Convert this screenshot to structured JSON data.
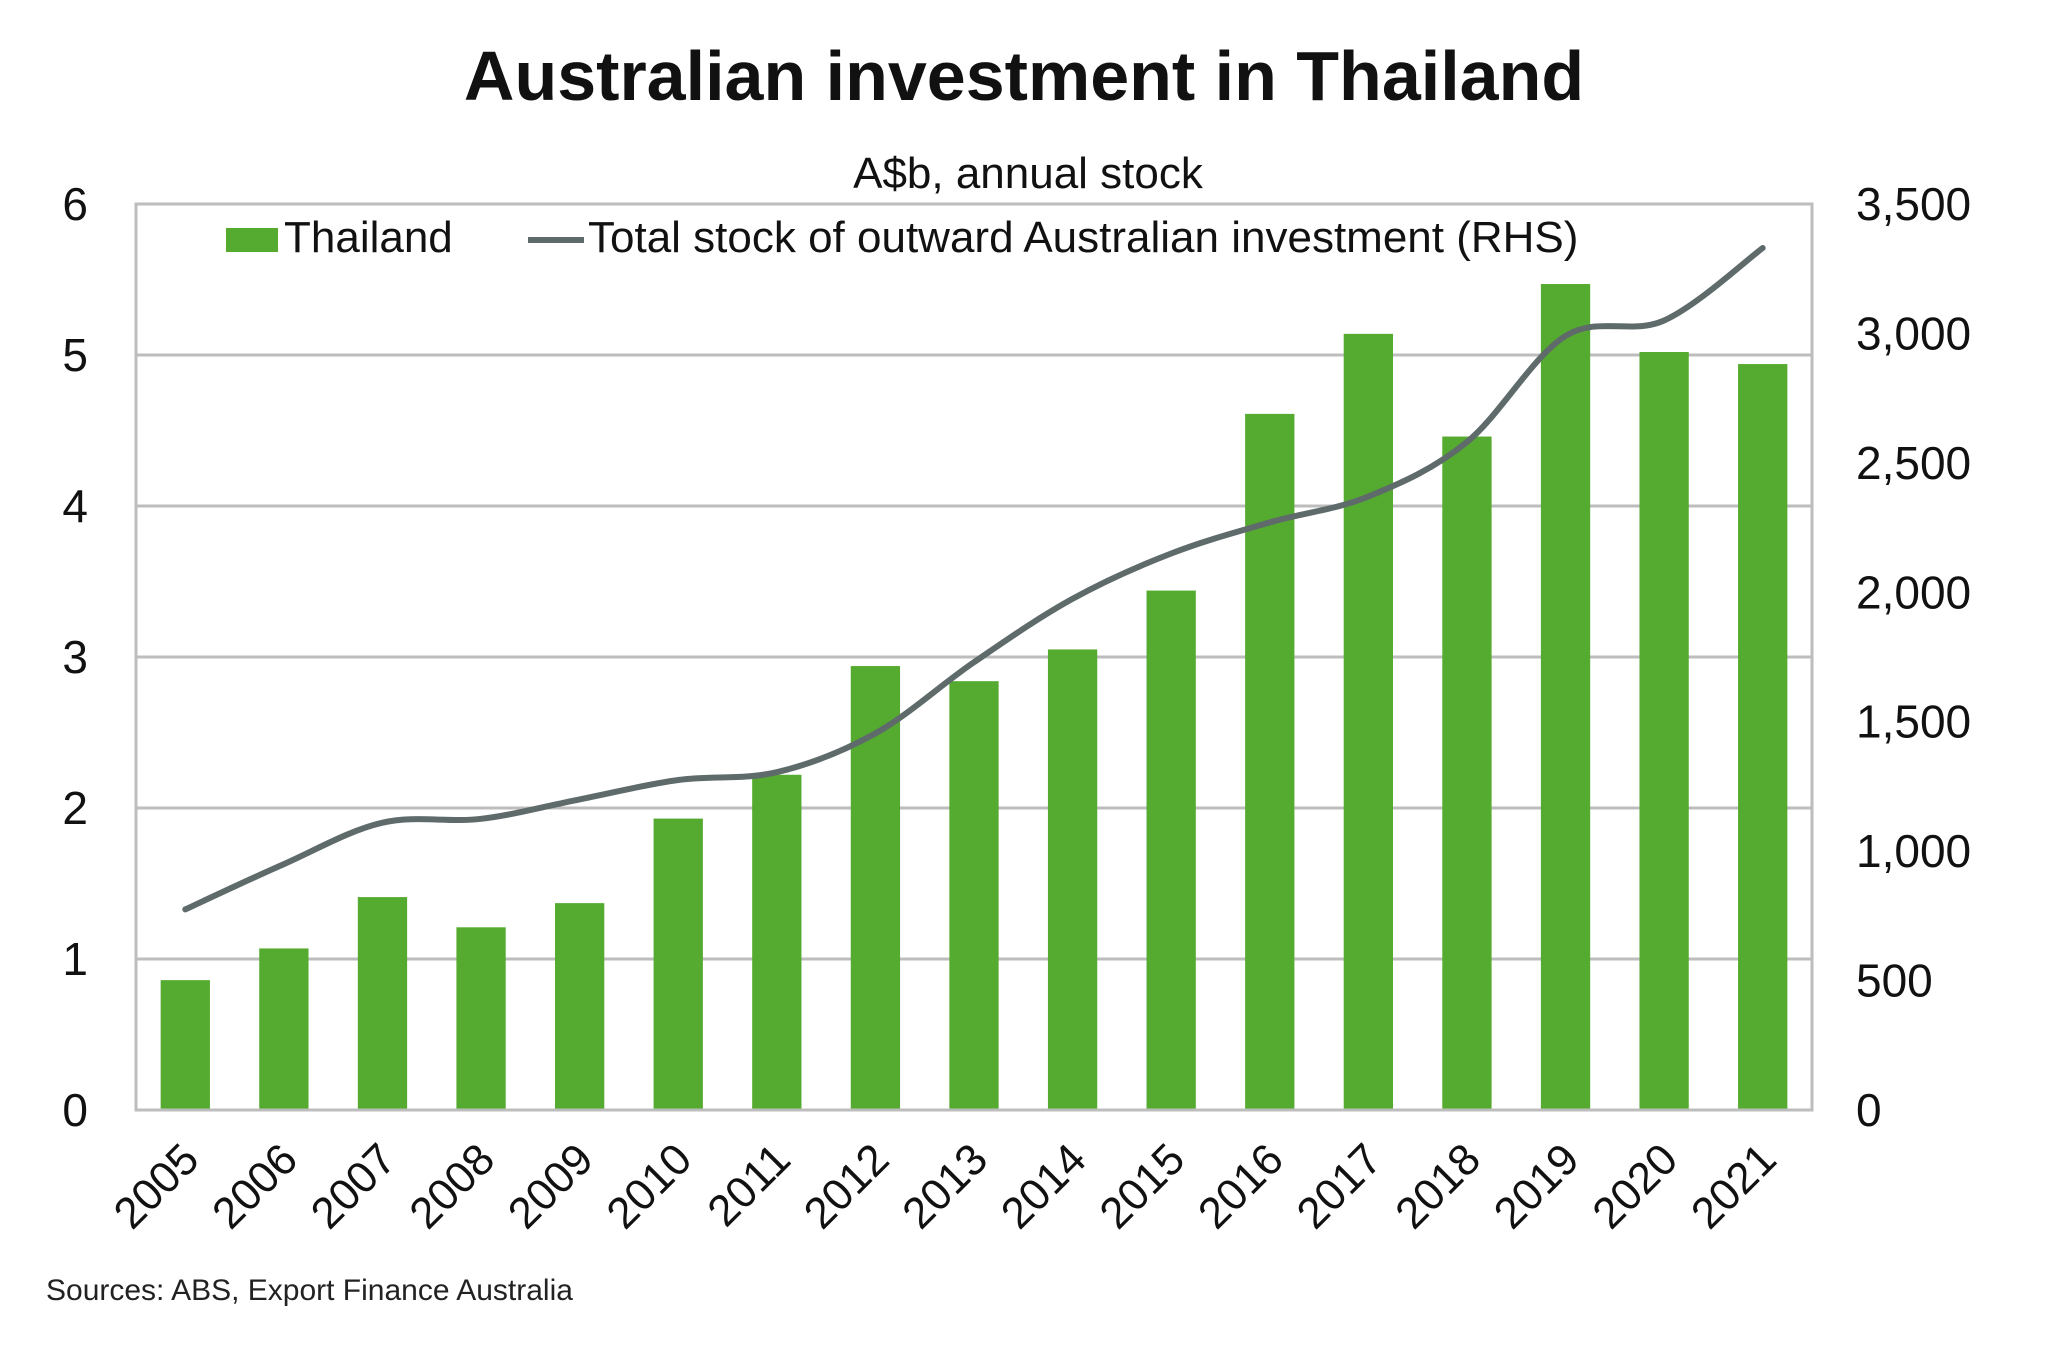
{
  "chart_data": {
    "type": "bar",
    "title": "Australian investment in Thailand",
    "subtitle": "A$b, annual stock",
    "categories": [
      "2005",
      "2006",
      "2007",
      "2008",
      "2009",
      "2010",
      "2011",
      "2012",
      "2013",
      "2014",
      "2015",
      "2016",
      "2017",
      "2018",
      "2019",
      "2020",
      "2021"
    ],
    "series": [
      {
        "name": "Thailand",
        "type": "bar",
        "axis": "left",
        "color": "#55ab30",
        "values": [
          0.86,
          1.07,
          1.41,
          1.21,
          1.37,
          1.93,
          2.22,
          2.94,
          2.84,
          3.05,
          3.44,
          4.61,
          5.14,
          4.46,
          5.47,
          5.02,
          4.94
        ]
      },
      {
        "name": "Total stock of outward Australian investment (RHS)",
        "type": "line",
        "axis": "right",
        "color": "#5f6a6a",
        "values": [
          775,
          950,
          1110,
          1125,
          1200,
          1275,
          1305,
          1455,
          1730,
          1975,
          2150,
          2270,
          2370,
          2580,
          2990,
          3050,
          3330
        ]
      }
    ],
    "y_left": {
      "ylim": [
        0,
        6
      ],
      "ticks": [
        "0",
        "1",
        "2",
        "3",
        "4",
        "5",
        "6"
      ]
    },
    "y_right": {
      "ylim": [
        0,
        3500
      ],
      "ticks": [
        "0",
        "500",
        "1,000",
        "1,500",
        "2,000",
        "2,500",
        "3,000",
        "3,500"
      ]
    },
    "grid": true,
    "legend": "top",
    "source": "Sources: ABS, Export Finance Australia"
  }
}
